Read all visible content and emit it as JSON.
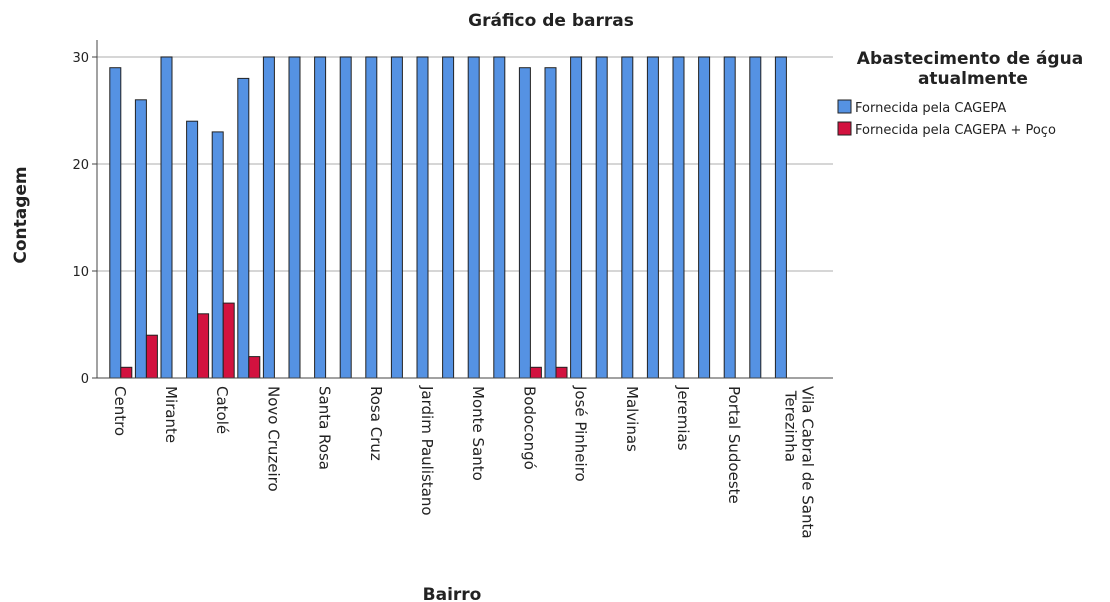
{
  "chart_data": {
    "type": "bar",
    "title": "Gráfico de barras",
    "x_label": "Bairro",
    "y_label": "Contagem",
    "legend_title": "Abastecimento de água atualmente",
    "categories": [
      "Centro",
      null,
      "Mirante",
      null,
      "Catolé",
      null,
      "Novo Cruzeiro",
      null,
      "Santa Rosa",
      null,
      "Rosa Cruz",
      null,
      "Jardim Paulistano",
      null,
      "Monte Santo",
      null,
      "Bodocongó",
      null,
      "José Pinheiro",
      null,
      "Malvinas",
      null,
      "Jeremias",
      null,
      "Portal Sudoeste",
      null,
      "Vila Cabral de Santa Terezinha"
    ],
    "series": [
      {
        "name": "Fornecida pela CAGEPA",
        "color": "#5592e3",
        "values": [
          29,
          26,
          30,
          24,
          23,
          28,
          30,
          30,
          30,
          30,
          30,
          30,
          30,
          30,
          30,
          30,
          29,
          29,
          30,
          30,
          30,
          30,
          30,
          30,
          30,
          30,
          30
        ]
      },
      {
        "name": "Fornecida pela CAGEPA + Poço",
        "color": "#d2123f",
        "values": [
          1,
          4,
          0,
          6,
          7,
          2,
          0,
          0,
          0,
          0,
          0,
          0,
          0,
          0,
          0,
          0,
          1,
          1,
          0,
          0,
          0,
          0,
          0,
          0,
          0,
          0,
          0
        ]
      }
    ],
    "ylim": [
      0,
      30
    ],
    "yticks": [
      0,
      10,
      20,
      30
    ],
    "grid": true,
    "legend": "right"
  }
}
